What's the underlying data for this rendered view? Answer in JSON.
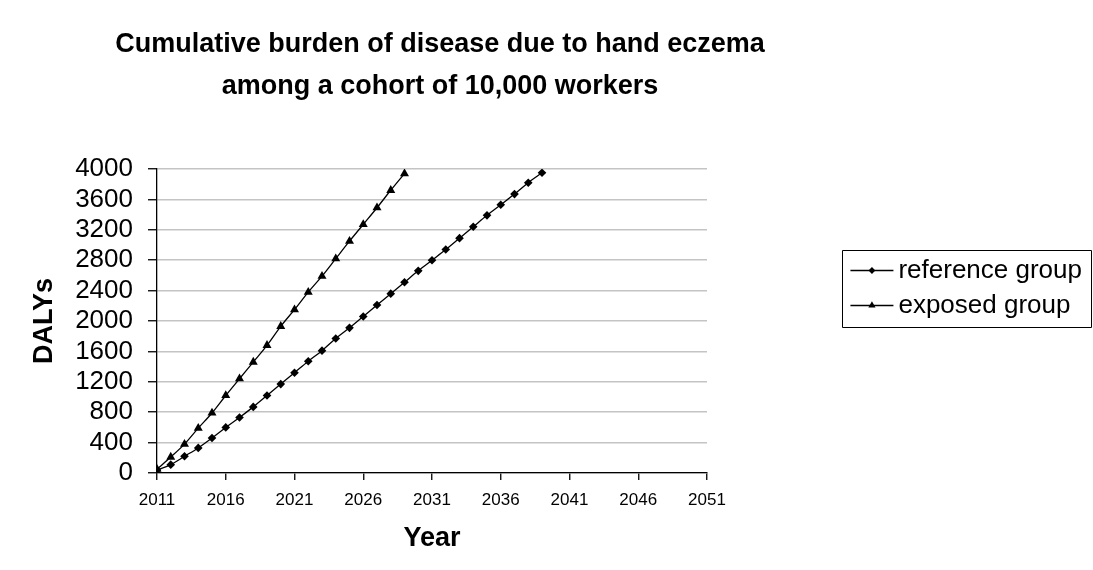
{
  "chart_data": {
    "type": "line",
    "title": "Cumulative burden of disease due to hand eczema among a cohort of 10,000 workers",
    "xlabel": "Year",
    "ylabel": "DALYs",
    "x": [
      2011,
      2012,
      2013,
      2014,
      2015,
      2016,
      2017,
      2018,
      2019,
      2020,
      2021,
      2022,
      2023,
      2024,
      2025,
      2026,
      2027,
      2028,
      2029,
      2030,
      2031,
      2032,
      2033,
      2034,
      2035,
      2036,
      2037,
      2038,
      2039
    ],
    "series": [
      {
        "name": "reference group",
        "color": "#000000",
        "marker": "diamond",
        "values": [
          40,
          110,
          220,
          330,
          460,
          600,
          730,
          870,
          1020,
          1170,
          1320,
          1470,
          1610,
          1770,
          1910,
          2060,
          2210,
          2360,
          2510,
          2660,
          2800,
          2940,
          3090,
          3240,
          3390,
          3530,
          3670,
          3820,
          3950
        ]
      },
      {
        "name": "exposed group",
        "color": "#000000",
        "marker": "triangle",
        "x": [
          2011,
          2012,
          2013,
          2014,
          2015,
          2016,
          2017,
          2018,
          2019,
          2020,
          2021,
          2022,
          2023,
          2024,
          2025,
          2026,
          2027,
          2028,
          2029
        ],
        "values": [
          50,
          210,
          380,
          590,
          790,
          1020,
          1240,
          1460,
          1680,
          1930,
          2150,
          2380,
          2590,
          2820,
          3050,
          3270,
          3490,
          3720,
          3940
        ]
      }
    ],
    "xlim": [
      2011,
      2051
    ],
    "xticks": [
      2011,
      2016,
      2021,
      2026,
      2031,
      2036,
      2041,
      2046,
      2051
    ],
    "ylim": [
      0,
      4000
    ],
    "yticks": [
      0,
      400,
      800,
      1200,
      1600,
      2000,
      2400,
      2800,
      3200,
      3600,
      4000
    ],
    "grid": "y",
    "legend": "right"
  }
}
